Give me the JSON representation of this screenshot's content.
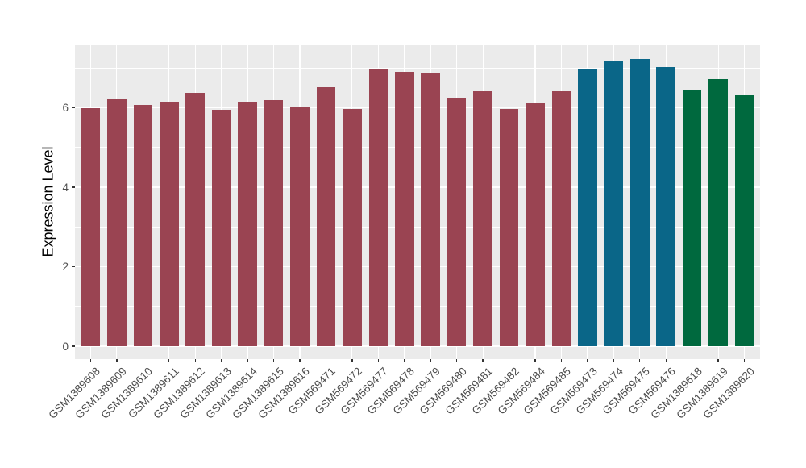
{
  "chart_data": {
    "type": "bar",
    "title": "",
    "xlabel": "",
    "ylabel": "Expression Level",
    "ylim": [
      0,
      7.58
    ],
    "yticks": [
      0,
      2,
      4,
      6
    ],
    "minor_gridlines_y": [
      1,
      3,
      5,
      7
    ],
    "grid": "on",
    "legend": "none",
    "panel_background": "#EBEBEB",
    "grid_color": "#FFFFFF",
    "tick_color": "#333333",
    "tick_label_color": "#4D4D4D",
    "axis_title_color": "#000000",
    "palette": [
      "#9A4452",
      "#0A6688",
      "#00693E"
    ],
    "categories": [
      "GSM1389608",
      "GSM1389609",
      "GSM1389610",
      "GSM1389611",
      "GSM1389612",
      "GSM1389613",
      "GSM1389614",
      "GSM1389615",
      "GSM1389616",
      "GSM569471",
      "GSM569472",
      "GSM569477",
      "GSM569478",
      "GSM569479",
      "GSM569480",
      "GSM569481",
      "GSM569482",
      "GSM569484",
      "GSM569485",
      "GSM569473",
      "GSM569474",
      "GSM569475",
      "GSM569476",
      "GSM1389618",
      "GSM1389619",
      "GSM1389620"
    ],
    "values": [
      6.0,
      6.22,
      6.08,
      6.15,
      6.38,
      5.95,
      6.16,
      6.2,
      6.03,
      6.52,
      5.97,
      6.99,
      6.91,
      6.86,
      6.23,
      6.42,
      5.97,
      6.12,
      6.42,
      6.98,
      7.18,
      7.23,
      7.02,
      6.46,
      6.73,
      6.31
    ],
    "group_index": [
      0,
      0,
      0,
      0,
      0,
      0,
      0,
      0,
      0,
      0,
      0,
      0,
      0,
      0,
      0,
      0,
      0,
      0,
      0,
      1,
      1,
      1,
      1,
      2,
      2,
      2
    ]
  }
}
